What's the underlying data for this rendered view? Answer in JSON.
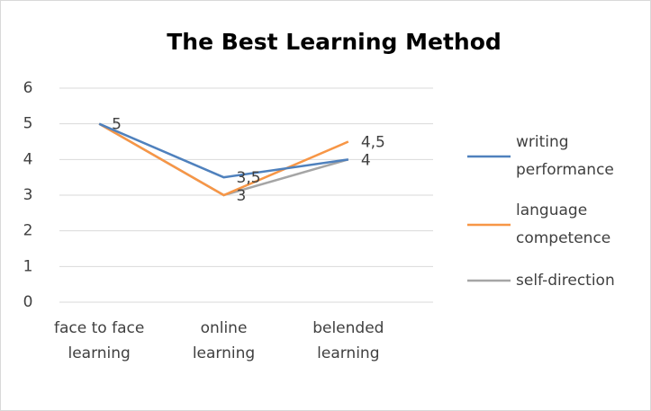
{
  "chart_data": {
    "type": "line",
    "title": "The Best Learning Method",
    "categories": [
      "face to face learning",
      "online learning",
      "belended learning"
    ],
    "series": [
      {
        "name": "writing performance",
        "color": "#4f81bd",
        "values": [
          5,
          3.5,
          4
        ],
        "value_labels": [
          null,
          "3,5",
          "4"
        ]
      },
      {
        "name": "language competence",
        "color": "#f79646",
        "values": [
          5,
          3,
          4.5
        ],
        "value_labels": [
          null,
          null,
          "4,5"
        ]
      },
      {
        "name": "self-direction",
        "color": "#a5a5a5",
        "values": [
          5,
          3,
          4
        ],
        "value_labels": [
          "5",
          "3",
          null
        ]
      }
    ],
    "ylim": [
      0,
      6
    ],
    "yticks": [
      0,
      1,
      2,
      3,
      4,
      5,
      6
    ],
    "grid": true,
    "legend": "right"
  }
}
